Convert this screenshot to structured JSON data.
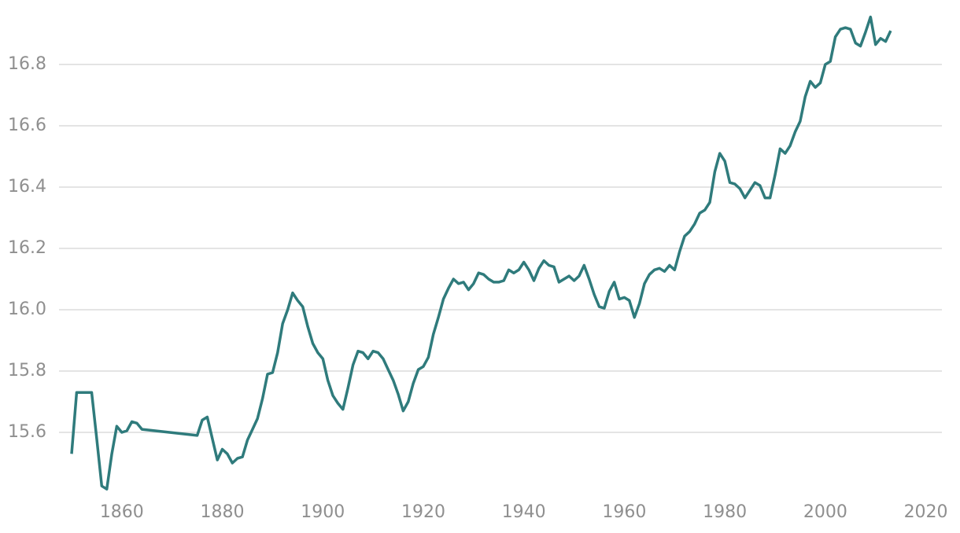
{
  "chart_data": {
    "type": "line",
    "x": [
      1850,
      1851,
      1852,
      1853,
      1854,
      1855,
      1856,
      1857,
      1858,
      1859,
      1860,
      1861,
      1862,
      1863,
      1864,
      1875,
      1876,
      1877,
      1878,
      1879,
      1880,
      1881,
      1882,
      1883,
      1884,
      1885,
      1886,
      1887,
      1888,
      1889,
      1890,
      1891,
      1892,
      1893,
      1894,
      1895,
      1896,
      1897,
      1898,
      1899,
      1900,
      1901,
      1902,
      1903,
      1904,
      1905,
      1906,
      1907,
      1908,
      1909,
      1910,
      1911,
      1912,
      1913,
      1914,
      1915,
      1916,
      1917,
      1918,
      1919,
      1920,
      1921,
      1922,
      1923,
      1924,
      1925,
      1926,
      1927,
      1928,
      1929,
      1930,
      1931,
      1932,
      1933,
      1934,
      1935,
      1936,
      1937,
      1938,
      1939,
      1940,
      1941,
      1942,
      1943,
      1944,
      1945,
      1946,
      1947,
      1948,
      1949,
      1950,
      1951,
      1952,
      1953,
      1954,
      1955,
      1956,
      1957,
      1958,
      1959,
      1960,
      1961,
      1962,
      1963,
      1964,
      1965,
      1966,
      1967,
      1968,
      1969,
      1970,
      1971,
      1972,
      1973,
      1974,
      1975,
      1976,
      1977,
      1978,
      1979,
      1980,
      1981,
      1982,
      1983,
      1984,
      1985,
      1986,
      1987,
      1988,
      1989,
      1990,
      1991,
      1992,
      1993,
      1994,
      1995,
      1996,
      1997,
      1998,
      1999,
      2000,
      2001,
      2002,
      2003,
      2004,
      2005,
      2006,
      2007,
      2008,
      2009,
      2010,
      2011,
      2012,
      2013
    ],
    "series": [
      {
        "color": "#2f7b7c",
        "values": [
          15.53,
          15.73,
          15.73,
          15.73,
          15.73,
          15.58,
          15.425,
          15.415,
          15.53,
          15.62,
          15.6,
          15.605,
          15.635,
          15.63,
          15.61,
          15.59,
          15.64,
          15.65,
          15.58,
          15.51,
          15.545,
          15.53,
          15.5,
          15.515,
          15.52,
          15.575,
          15.61,
          15.645,
          15.71,
          15.79,
          15.795,
          15.86,
          15.955,
          16.0,
          16.055,
          16.03,
          16.01,
          15.945,
          15.89,
          15.86,
          15.84,
          15.77,
          15.72,
          15.695,
          15.675,
          15.745,
          15.82,
          15.865,
          15.86,
          15.84,
          15.865,
          15.86,
          15.84,
          15.805,
          15.77,
          15.725,
          15.67,
          15.7,
          15.76,
          15.805,
          15.815,
          15.845,
          15.92,
          15.975,
          16.035,
          16.07,
          16.1,
          16.085,
          16.09,
          16.065,
          16.085,
          16.12,
          16.115,
          16.1,
          16.09,
          16.09,
          16.095,
          16.13,
          16.12,
          16.13,
          16.155,
          16.13,
          16.095,
          16.135,
          16.16,
          16.145,
          16.14,
          16.09,
          16.1,
          16.11,
          16.095,
          16.11,
          16.145,
          16.1,
          16.05,
          16.01,
          16.005,
          16.06,
          16.09,
          16.035,
          16.04,
          16.03,
          15.975,
          16.02,
          16.085,
          16.115,
          16.13,
          16.135,
          16.125,
          16.145,
          16.13,
          16.19,
          16.24,
          16.255,
          16.28,
          16.315,
          16.325,
          16.35,
          16.45,
          16.51,
          16.485,
          16.415,
          16.41,
          16.395,
          16.365,
          16.39,
          16.415,
          16.405,
          16.365,
          16.365,
          16.44,
          16.525,
          16.51,
          16.535,
          16.58,
          16.615,
          16.695,
          16.745,
          16.725,
          16.74,
          16.8,
          16.81,
          16.89,
          16.915,
          16.92,
          16.915,
          16.87,
          16.86,
          16.905,
          16.955,
          16.865,
          16.885,
          16.875,
          16.91
        ]
      }
    ],
    "xlim": [
      1847.5,
      2023.2
    ],
    "ylim": [
      15.4,
      17.0
    ],
    "xticks": [
      1860,
      1880,
      1900,
      1920,
      1940,
      1960,
      1980,
      2000,
      2020
    ],
    "yticks": [
      15.6,
      15.8,
      {
        "value": 16,
        "label": "16.0"
      },
      16.2,
      16.4,
      16.6,
      16.8
    ],
    "grid": true
  }
}
